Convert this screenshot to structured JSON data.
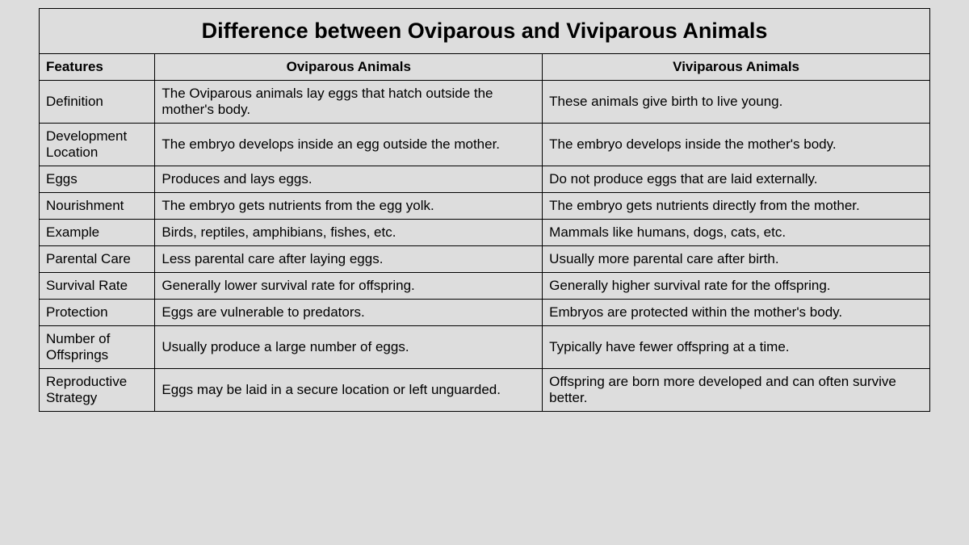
{
  "table": {
    "title": "Difference between Oviparous and Viviparous Animals",
    "background_color": "#dddddd",
    "border_color": "#000000",
    "text_color": "#000000",
    "title_fontsize": 27,
    "header_fontsize": 17,
    "body_fontsize": 17,
    "columns": [
      {
        "key": "feature",
        "label": "Features",
        "width_pct": 13,
        "align": "left"
      },
      {
        "key": "oviparous",
        "label": "Oviparous Animals",
        "width_pct": 43.5,
        "align": "center"
      },
      {
        "key": "viviparous",
        "label": "Viviparous Animals",
        "width_pct": 43.5,
        "align": "center"
      }
    ],
    "rows": [
      {
        "feature": "Definition",
        "oviparous": "The Oviparous animals lay eggs that hatch outside the mother's body.",
        "viviparous": "These animals give birth to live young."
      },
      {
        "feature": "Development Location",
        "oviparous": "The embryo develops inside an egg outside the mother.",
        "viviparous": "The embryo develops inside the mother's body."
      },
      {
        "feature": "Eggs",
        "oviparous": "Produces and lays eggs.",
        "viviparous": "Do not produce eggs that are laid externally."
      },
      {
        "feature": "Nourishment",
        "oviparous": "The embryo gets nutrients from the egg yolk.",
        "viviparous": "The embryo gets nutrients directly from the mother."
      },
      {
        "feature": "Example",
        "oviparous": "Birds, reptiles, amphibians, fishes, etc.",
        "viviparous": "Mammals like humans, dogs, cats, etc."
      },
      {
        "feature": "Parental Care",
        "oviparous": "Less parental care after laying eggs.",
        "viviparous": "Usually more parental care after birth."
      },
      {
        "feature": "Survival Rate",
        "oviparous": "Generally lower survival rate for offspring.",
        "viviparous": "Generally higher survival rate for the offspring."
      },
      {
        "feature": "Protection",
        "oviparous": "Eggs are vulnerable to predators.",
        "viviparous": "Embryos are protected within the mother's body."
      },
      {
        "feature": "Number of Offsprings",
        "oviparous": "Usually produce a large number of eggs.",
        "viviparous": "Typically have fewer offspring at a time."
      },
      {
        "feature": "Reproductive Strategy",
        "oviparous": "Eggs may be laid in a secure location or left unguarded.",
        "viviparous": "Offspring are born more developed and can often survive better."
      }
    ]
  }
}
